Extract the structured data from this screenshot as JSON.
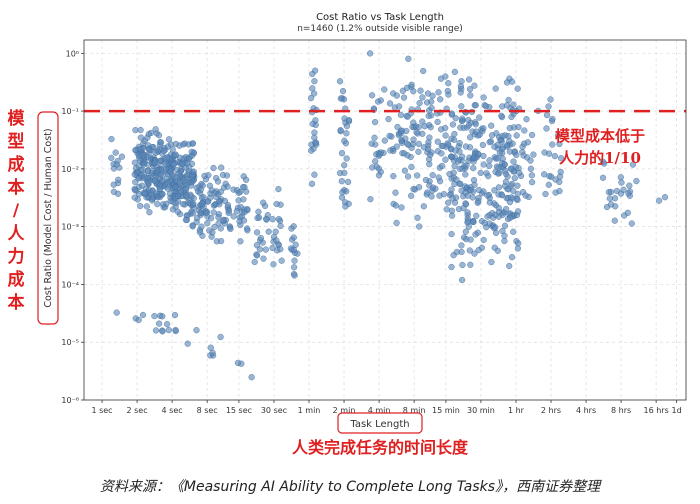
{
  "chart_data": {
    "type": "scatter",
    "title": "Cost Ratio vs Task Length",
    "subtitle": "n=1460 (1.2% outside visible range)",
    "xlabel": "Task Length",
    "ylabel": "Cost Ratio (Model Cost / Human Cost)",
    "x_scale": "log",
    "y_scale": "log",
    "x_unit": "seconds",
    "xlim": [
      0.7,
      104000
    ],
    "ylim": [
      1e-06,
      1.7
    ],
    "grid": true,
    "x_ticks": [
      {
        "value": 1,
        "label": "1 sec"
      },
      {
        "value": 2,
        "label": "2 sec"
      },
      {
        "value": 4,
        "label": "4 sec"
      },
      {
        "value": 8,
        "label": "8 sec"
      },
      {
        "value": 15,
        "label": "15 sec"
      },
      {
        "value": 30,
        "label": "30 sec"
      },
      {
        "value": 60,
        "label": "1 min"
      },
      {
        "value": 120,
        "label": "2 min"
      },
      {
        "value": 240,
        "label": "4 min"
      },
      {
        "value": 480,
        "label": "8 min"
      },
      {
        "value": 900,
        "label": "15 min"
      },
      {
        "value": 1800,
        "label": "30 min"
      },
      {
        "value": 3600,
        "label": "1 hr"
      },
      {
        "value": 7200,
        "label": "2 hrs"
      },
      {
        "value": 14400,
        "label": "4 hrs"
      },
      {
        "value": 28800,
        "label": "8 hrs"
      },
      {
        "value": 57600,
        "label": "16 hrs"
      },
      {
        "value": 86400,
        "label": "1d"
      }
    ],
    "y_ticks": [
      {
        "value": 1,
        "label": "10⁰"
      },
      {
        "value": 0.1,
        "label": "10⁻¹"
      },
      {
        "value": 0.01,
        "label": "10⁻²"
      },
      {
        "value": 0.001,
        "label": "10⁻³"
      },
      {
        "value": 0.0001,
        "label": "10⁻⁴"
      },
      {
        "value": 1e-05,
        "label": "10⁻⁵"
      },
      {
        "value": 1e-06,
        "label": "10⁻⁶"
      }
    ],
    "reference_line": {
      "y": 0.1,
      "style": "dashed",
      "color": "#e02020"
    },
    "marker_color": "#5b87b8",
    "clusters": [
      {
        "x_range": [
          1.2,
          1.5
        ],
        "y_range": [
          0.002,
          0.06
        ],
        "count": 14
      },
      {
        "x_range": [
          1.9,
          2.8
        ],
        "y_range": [
          0.0015,
          0.06
        ],
        "count": 110
      },
      {
        "x_range": [
          2.8,
          4.2
        ],
        "y_range": [
          0.0015,
          0.06
        ],
        "count": 130
      },
      {
        "x_range": [
          4.2,
          6.2
        ],
        "y_range": [
          0.0008,
          0.04
        ],
        "count": 120
      },
      {
        "x_range": [
          6.5,
          11
        ],
        "y_range": [
          0.0005,
          0.015
        ],
        "count": 70
      },
      {
        "x_range": [
          11,
          18
        ],
        "y_range": [
          0.0004,
          0.01
        ],
        "count": 45
      },
      {
        "x_range": [
          20,
          35
        ],
        "y_range": [
          0.00015,
          0.005
        ],
        "count": 38
      },
      {
        "x_range": [
          42,
          48
        ],
        "y_range": [
          0.0001,
          0.0015
        ],
        "count": 14
      },
      {
        "x_range": [
          1.3,
          1.4
        ],
        "y_range": [
          3e-05,
          4e-05
        ],
        "count": 1
      },
      {
        "x_range": [
          1.8,
          2.3
        ],
        "y_range": [
          2e-05,
          3e-05
        ],
        "count": 3
      },
      {
        "x_range": [
          2.8,
          6.5
        ],
        "y_range": [
          9e-06,
          4e-05
        ],
        "count": 14
      },
      {
        "x_range": [
          8,
          11
        ],
        "y_range": [
          5e-06,
          1.5e-05
        ],
        "count": 5
      },
      {
        "x_range": [
          14,
          30
        ],
        "y_range": [
          2e-06,
          7e-06
        ],
        "count": 3
      },
      {
        "x_range": [
          62,
          70
        ],
        "y_range": [
          0.005,
          1.2
        ],
        "count": 22
      },
      {
        "x_range": [
          110,
          135
        ],
        "y_range": [
          0.0005,
          1.3
        ],
        "count": 30
      },
      {
        "x_range": [
          200,
          1000
        ],
        "y_range": [
          0.0008,
          1.3
        ],
        "count": 170
      },
      {
        "x_range": [
          1000,
          3800
        ],
        "y_range": [
          0.0001,
          0.8
        ],
        "count": 300
      },
      {
        "x_range": [
          3800,
          9000
        ],
        "y_range": [
          0.002,
          0.2
        ],
        "count": 45
      },
      {
        "x_range": [
          20000,
          40000
        ],
        "y_range": [
          0.0004,
          0.05
        ],
        "count": 25
      },
      {
        "x_range": [
          60000,
          70000
        ],
        "y_range": [
          0.002,
          0.004
        ],
        "count": 2
      }
    ],
    "annotations": {
      "ylabel_cn": [
        "模",
        "型",
        "成",
        "本",
        "/",
        "人",
        "力",
        "成",
        "本"
      ],
      "threshold_cn": [
        "模型成本低于",
        "人力的1/10"
      ],
      "xlabel_cn": "人类完成任务的时间长度"
    }
  },
  "caption": "资料来源：《Measuring AI Ability to Complete Long Tasks》，西南证券整理"
}
